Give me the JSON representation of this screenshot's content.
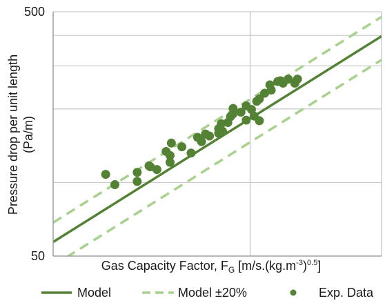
{
  "chart_data": {
    "type": "scatter",
    "title": "",
    "xlabel": {
      "main": "Gas Capacity Factor, F",
      "sub": "G",
      "units_pre": " [m/s.(kg.m",
      "units_sup": "-3",
      "units_mid": ")",
      "units_sup2": "0.5",
      "units_post": "]"
    },
    "ylabel_line1": "Pressure drop per unit length",
    "ylabel_line2": "(Pa/m)",
    "y_scale": "log",
    "ylim": [
      50,
      500
    ],
    "y_ticks": [
      {
        "value": 50,
        "label": "50"
      },
      {
        "value": 500,
        "label": "500"
      }
    ],
    "y_minor_gridlines": [
      100,
      200,
      300,
      400
    ],
    "xlim": [
      0,
      2.5
    ],
    "x_gridlines": [
      1.5,
      2.5
    ],
    "x_ticks": [],
    "grid": true,
    "legend": {
      "placement": "bottom",
      "entries": [
        {
          "label": "Model",
          "style": "solid-line"
        },
        {
          "label": "Model ±20%",
          "style": "dashed-line"
        },
        {
          "label": "Exp. Data",
          "style": "marker"
        }
      ]
    },
    "colors": {
      "model": "#548235",
      "band": "#a9d18e",
      "points": "#548235",
      "grid": "#c9c9c9",
      "axis": "#9e9e9e"
    },
    "model_line": {
      "x": [
        0,
        2.5
      ],
      "y": [
        57.1,
        397
      ]
    },
    "series": [
      {
        "name": "Exp. Data",
        "points": [
          [
            0.4,
            108
          ],
          [
            0.47,
            98
          ],
          [
            0.64,
            110
          ],
          [
            0.64,
            101
          ],
          [
            0.73,
            117
          ],
          [
            0.74,
            116
          ],
          [
            0.79,
            113
          ],
          [
            0.86,
            134
          ],
          [
            0.89,
            121
          ],
          [
            0.89,
            129
          ],
          [
            0.9,
            145
          ],
          [
            0.98,
            140
          ],
          [
            1.05,
            132
          ],
          [
            1.1,
            153
          ],
          [
            1.13,
            147
          ],
          [
            1.16,
            158
          ],
          [
            1.19,
            155
          ],
          [
            1.26,
            166
          ],
          [
            1.26,
            159
          ],
          [
            1.28,
            174
          ],
          [
            1.29,
            162
          ],
          [
            1.33,
            176
          ],
          [
            1.35,
            186
          ],
          [
            1.37,
            191
          ],
          [
            1.37,
            201
          ],
          [
            1.43,
            194
          ],
          [
            1.47,
            206
          ],
          [
            1.51,
            199
          ],
          [
            1.55,
            215
          ],
          [
            1.57,
            220
          ],
          [
            1.61,
            232
          ],
          [
            1.65,
            251
          ],
          [
            1.66,
            239
          ],
          [
            1.71,
            259
          ],
          [
            1.73,
            261
          ],
          [
            1.75,
            255
          ],
          [
            1.79,
            265
          ],
          [
            1.84,
            255
          ],
          [
            1.86,
            265
          ],
          [
            1.47,
            180
          ],
          [
            1.53,
            187
          ],
          [
            1.57,
            179
          ]
        ]
      }
    ]
  }
}
